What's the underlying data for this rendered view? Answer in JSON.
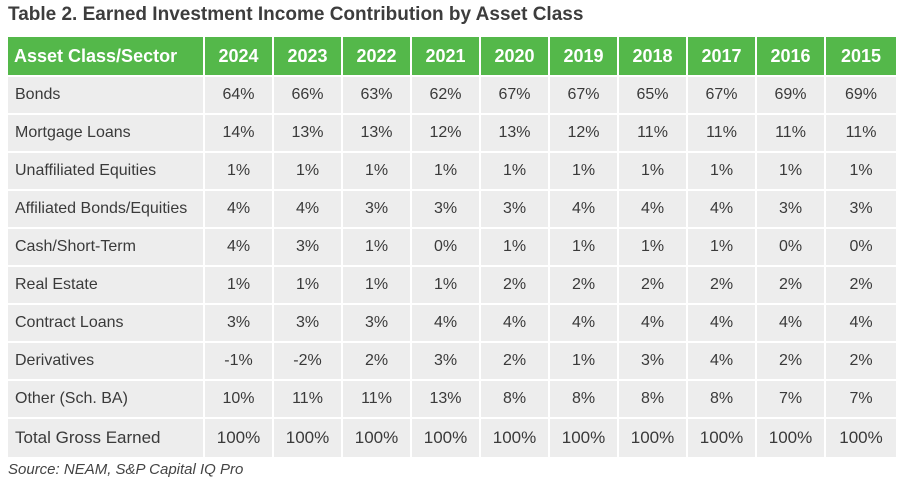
{
  "title": "Table 2. Earned Investment Income Contribution by Asset Class",
  "columns": [
    "Asset Class/Sector",
    "2024",
    "2023",
    "2022",
    "2021",
    "2020",
    "2019",
    "2018",
    "2017",
    "2016",
    "2015"
  ],
  "rows": [
    {
      "label": "Bonds",
      "values": [
        "64%",
        "66%",
        "63%",
        "62%",
        "67%",
        "67%",
        "65%",
        "67%",
        "69%",
        "69%"
      ]
    },
    {
      "label": "Mortgage Loans",
      "values": [
        "14%",
        "13%",
        "13%",
        "12%",
        "13%",
        "12%",
        "11%",
        "11%",
        "11%",
        "11%"
      ]
    },
    {
      "label": "Unaffiliated Equities",
      "values": [
        "1%",
        "1%",
        "1%",
        "1%",
        "1%",
        "1%",
        "1%",
        "1%",
        "1%",
        "1%"
      ]
    },
    {
      "label": "Affiliated Bonds/Equities",
      "values": [
        "4%",
        "4%",
        "3%",
        "3%",
        "3%",
        "4%",
        "4%",
        "4%",
        "3%",
        "3%"
      ]
    },
    {
      "label": "Cash/Short-Term",
      "values": [
        "4%",
        "3%",
        "1%",
        "0%",
        "1%",
        "1%",
        "1%",
        "1%",
        "0%",
        "0%"
      ]
    },
    {
      "label": "Real Estate",
      "values": [
        "1%",
        "1%",
        "1%",
        "1%",
        "2%",
        "2%",
        "2%",
        "2%",
        "2%",
        "2%"
      ]
    },
    {
      "label": "Contract Loans",
      "values": [
        "3%",
        "3%",
        "3%",
        "4%",
        "4%",
        "4%",
        "4%",
        "4%",
        "4%",
        "4%"
      ]
    },
    {
      "label": "Derivatives",
      "values": [
        "-1%",
        "-2%",
        "2%",
        "3%",
        "2%",
        "1%",
        "3%",
        "4%",
        "2%",
        "2%"
      ]
    },
    {
      "label": "Other (Sch. BA)",
      "values": [
        "10%",
        "11%",
        "11%",
        "13%",
        "8%",
        "8%",
        "8%",
        "8%",
        "7%",
        "7%"
      ]
    },
    {
      "label": "Total Gross Earned",
      "values": [
        "100%",
        "100%",
        "100%",
        "100%",
        "100%",
        "100%",
        "100%",
        "100%",
        "100%",
        "100%"
      ]
    }
  ],
  "source": "Source: NEAM, S&P Capital IQ Pro"
}
